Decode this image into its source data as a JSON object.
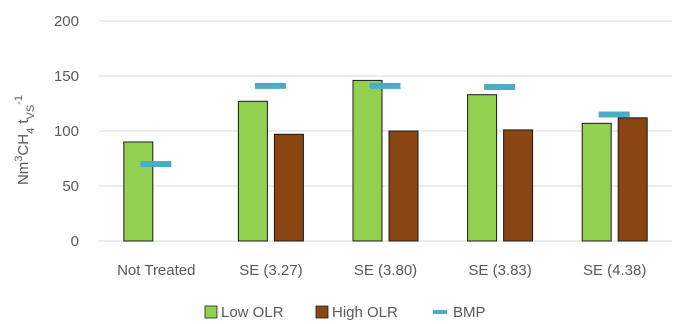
{
  "chart_data": {
    "type": "bar",
    "categories": [
      "Not Treated",
      "SE (3.27)",
      "SE (3.80)",
      "SE (3.83)",
      "SE (4.38)"
    ],
    "series": [
      {
        "name": "Low OLR",
        "values": [
          90,
          127,
          146,
          133,
          107
        ],
        "color": "#92D050"
      },
      {
        "name": "High OLR",
        "values": [
          null,
          97,
          100,
          101,
          112
        ],
        "color": "#8B4513"
      },
      {
        "name": "BMP",
        "values": [
          70,
          141,
          141,
          140,
          115
        ],
        "color": "#4BACC6",
        "marker": "dash"
      }
    ],
    "ylabel": {
      "base": "Nm",
      "sup1": "3",
      "mid": "CH",
      "sub1": "4",
      "t": " t",
      "sub2": "VS",
      "sup2": "-1"
    },
    "ylim": [
      0,
      200
    ],
    "yticks": [
      "0",
      "50",
      "100",
      "150",
      "200"
    ],
    "grid": true,
    "legend": "bottom"
  }
}
